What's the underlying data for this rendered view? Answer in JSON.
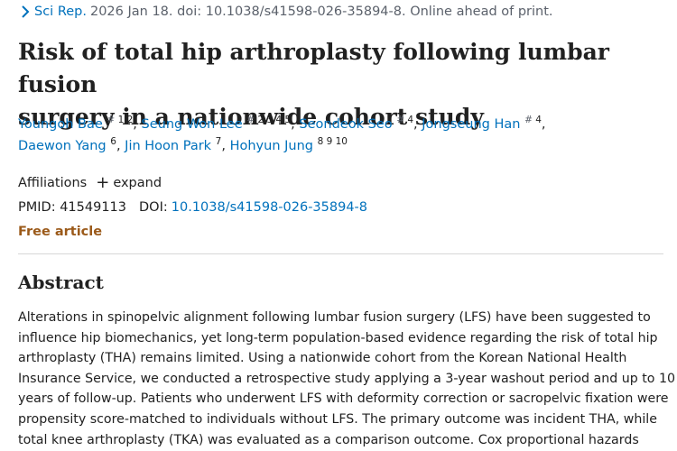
{
  "citation": {
    "journal": "Sci Rep.",
    "details": "2026 Jan 18. doi: 10.1038/s41598-026-35894-8. Online ahead of print."
  },
  "title": {
    "line1": "Risk of total hip arthroplasty following lumbar fusion",
    "line2": "surgery in a nationwide cohort study"
  },
  "authors": [
    {
      "name": "Youngoh Bae",
      "sup_hash": "#",
      "sup_nums": "1 2",
      "sep": ","
    },
    {
      "name": "Seung Won Lee",
      "sup_hash": "#",
      "sup_nums": "2 3 4 5",
      "sep": ","
    },
    {
      "name": "Seondeok Seo",
      "sup_hash": "#",
      "sup_nums": "4",
      "sep": ","
    },
    {
      "name": "Jongseung Han",
      "sup_hash": "#",
      "sup_nums": "4",
      "sep": ","
    },
    {
      "name": "Daewon Yang",
      "sup_hash": "",
      "sup_nums": "6",
      "sep": ","
    },
    {
      "name": "Jin Hoon Park",
      "sup_hash": "",
      "sup_nums": "7",
      "sep": ","
    },
    {
      "name": "Hohyun Jung",
      "sup_hash": "",
      "sup_nums": "8 9 10",
      "sep": ""
    }
  ],
  "affiliations": {
    "label": "Affiliations",
    "expand_label": "expand"
  },
  "ids": {
    "pmid_label": "PMID:",
    "pmid": "41549113",
    "doi_label": "DOI:",
    "doi": "10.1038/s41598-026-35894-8"
  },
  "free_article": "Free article",
  "abstract": {
    "heading": "Abstract",
    "lines": [
      "Alterations in spinopelvic alignment following lumbar fusion surgery (LFS) have been suggested to",
      "influence hip biomechanics, yet long-term population-based evidence regarding the risk of total hip",
      "arthroplasty (THA) remains limited. Using a nationwide cohort from the Korean National Health",
      "Insurance Service, we conducted a retrospective study applying a 3-year washout period and up to 10",
      "years of follow-up. Patients who underwent LFS with deformity correction or sacropelvic fixation were",
      "propensity score-matched to individuals without LFS. The primary outcome was incident THA, while",
      "total knee arthroplasty (TKA) was evaluated as a comparison outcome. Cox proportional hazards"
    ]
  },
  "colors": {
    "link": "#0071bc",
    "free_article": "#9b5a1a",
    "muted": "#5b616b",
    "text": "#212121"
  },
  "icons": {
    "journal_nav": "chevron-right-icon",
    "expand": "plus-icon"
  }
}
